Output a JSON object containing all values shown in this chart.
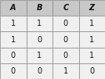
{
  "headers": [
    "A",
    "B",
    "C",
    "Z"
  ],
  "rows": [
    [
      "1",
      "1",
      "0",
      "1"
    ],
    [
      "1",
      "0",
      "0",
      "1"
    ],
    [
      "0",
      "1",
      "0",
      "1"
    ],
    [
      "0",
      "0",
      "1",
      "0"
    ]
  ],
  "header_bg": "#c8c8c8",
  "row_bg": "#f0f0f0",
  "border_color": "#888888",
  "text_color": "#111111",
  "header_fontsize": 7,
  "row_fontsize": 7,
  "figsize": [
    1.34,
    1.01
  ],
  "dpi": 100,
  "fig_bg": "#e8e8e8"
}
